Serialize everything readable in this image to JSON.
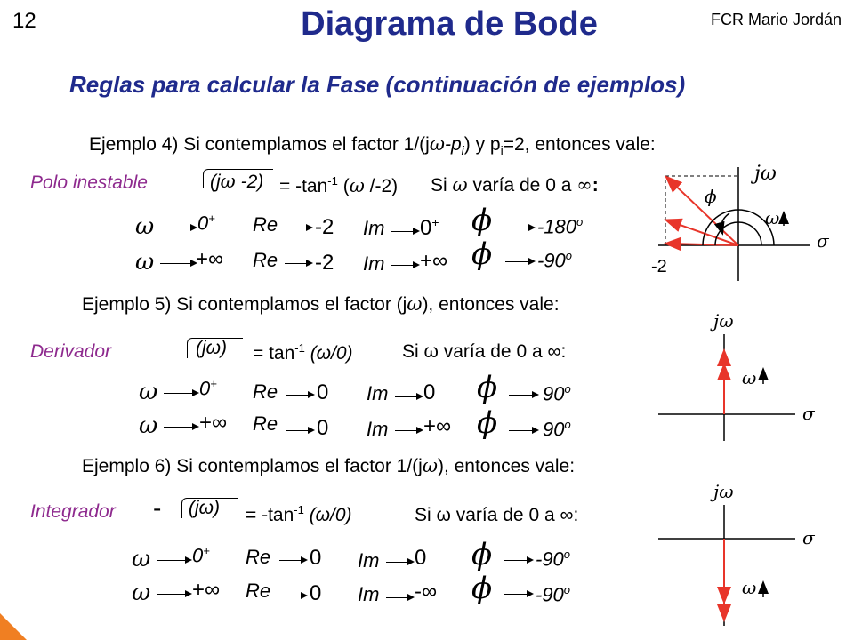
{
  "header": {
    "slide_number": "12",
    "title": "Diagrama de Bode",
    "author": "FCR Mario Jordán",
    "subtitle": "Reglas para calcular la Fase (continuación de ejemplos)"
  },
  "ex4": {
    "intro_a": "Ejemplo 4) Si contemplamos el factor 1/(j",
    "intro_w": "ω",
    "intro_b": "-p",
    "intro_sub": "i",
    "intro_c": ") y p",
    "intro_sub2": "i",
    "intro_d": "=2, entonces vale:",
    "label": "Polo inestable",
    "factor_a": "(j",
    "factor_w": "ω",
    "factor_b": " -2)",
    "eq_a": "= -tan",
    "eq_sup": "-1",
    "eq_b": " (",
    "eq_w": "ω",
    "eq_c": " /-2)",
    "cond_a": "Si ",
    "cond_w": "ω",
    "cond_b": " varía de 0 a ",
    "cond_inf": "∞",
    "cond_c": ":",
    "row1": {
      "w": "ω",
      "start": "0",
      "start_sup": "+",
      "re": "Re",
      "re_val": "-2",
      "im": "Im",
      "im_val": "0",
      "im_sup": "+",
      "phi": "ϕ",
      "phase": "-180",
      "phase_sup": "o"
    },
    "row2": {
      "w": "ω",
      "start": "+∞",
      "re": "Re",
      "re_val": "-2",
      "im": "Im",
      "im_val": "+∞",
      "phi": "ϕ",
      "phase": "-90",
      "phase_sup": "o"
    },
    "diagram": {
      "jw": "jω",
      "phi": "ϕ",
      "w": "ω",
      "sigma": "σ",
      "pole": "-2"
    }
  },
  "ex5": {
    "intro_a": "Ejemplo 5) Si contemplamos el factor (j",
    "intro_w": "ω",
    "intro_b": "), entonces vale:",
    "label": "Derivador",
    "factor": "(jω)",
    "eq": "= tan",
    "eq_sup": "-1",
    "eq_b": " (ω/0)",
    "cond": "Si ω varía de 0 a ∞:",
    "row1": {
      "w": "ω",
      "start": "0",
      "start_sup": "+",
      "re": "Re",
      "re_val": "0",
      "im": "Im",
      "im_val": "0",
      "phi": "ϕ",
      "phase": "90",
      "phase_sup": "o"
    },
    "row2": {
      "w": "ω",
      "start": "+∞",
      "re": "Re",
      "re_val": "0",
      "im": "Im",
      "im_val": "+∞",
      "phi": "ϕ",
      "phase": "90",
      "phase_sup": "o"
    },
    "diagram": {
      "jw": "jω",
      "w": "ω",
      "sigma": "σ"
    }
  },
  "ex6": {
    "intro_a": "Ejemplo 6) Si contemplamos el factor 1/(j",
    "intro_w": "ω",
    "intro_b": "), entonces vale:",
    "label": "Integrador",
    "minus": "-",
    "factor": "(jω)",
    "eq": "= -tan",
    "eq_sup": "-1",
    "eq_b": " (ω/0)",
    "cond": "Si ω varía de 0 a ∞:",
    "row1": {
      "w": "ω",
      "start": "0",
      "start_sup": "+",
      "re": "Re",
      "re_val": "0",
      "im": "Im",
      "im_val": "0",
      "phi": "ϕ",
      "phase": "-90",
      "phase_sup": "o"
    },
    "row2": {
      "w": "ω",
      "start": "+∞",
      "re": "Re",
      "re_val": "0",
      "im": "Im",
      "im_val": "-∞",
      "phi": "ϕ",
      "phase": "-90",
      "phase_sup": "o"
    },
    "diagram": {
      "jw": "jω",
      "w": "ω",
      "sigma": "σ"
    }
  },
  "colors": {
    "title": "#1f2a8c",
    "label": "#8e2a8e",
    "vector": "#e8352a",
    "accent": "#f07f22"
  }
}
